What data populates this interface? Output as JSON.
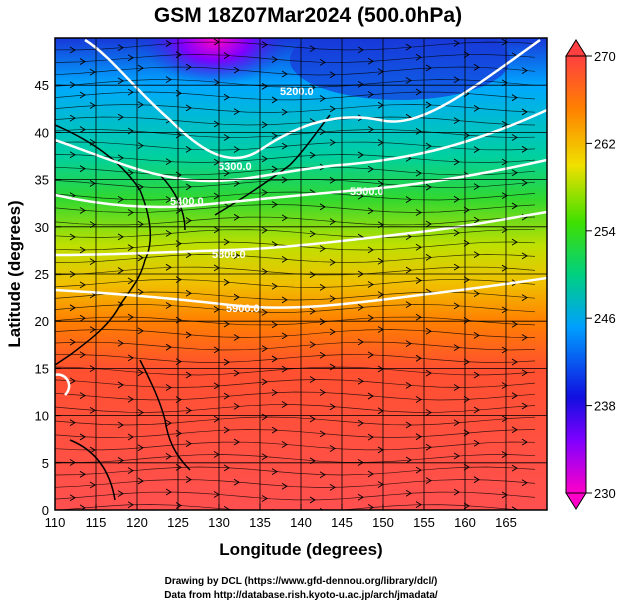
{
  "title": "GSM 18Z07Mar2024 (500.0hPa)",
  "xlabel": "Longitude (degrees)",
  "ylabel": "Latitude  (degrees)",
  "credits": [
    "Drawing by DCL (https://www.gfd-dennou.org/library/dcl/)",
    "Data from http://database.rish.kyoto-u.ac.jp/arch/jmadata/"
  ],
  "chart_data": {
    "type": "heatmap",
    "x_ticks": [
      110,
      115,
      120,
      125,
      130,
      135,
      140,
      145,
      150,
      155,
      160,
      165
    ],
    "y_ticks": [
      0,
      5,
      10,
      15,
      20,
      25,
      30,
      35,
      40,
      45
    ],
    "xlim": [
      110,
      170
    ],
    "ylim": [
      0,
      50
    ],
    "colorbar": {
      "ticks": [
        230,
        238,
        246,
        254,
        262,
        270
      ],
      "range": [
        230,
        270
      ]
    },
    "contours": [
      {
        "label": "5200.0"
      },
      {
        "label": "5300.0"
      },
      {
        "label": "5400.0"
      },
      {
        "label": "5500.0"
      },
      {
        "label": "5800.0"
      },
      {
        "label": "5900.0"
      }
    ],
    "grid": true
  }
}
